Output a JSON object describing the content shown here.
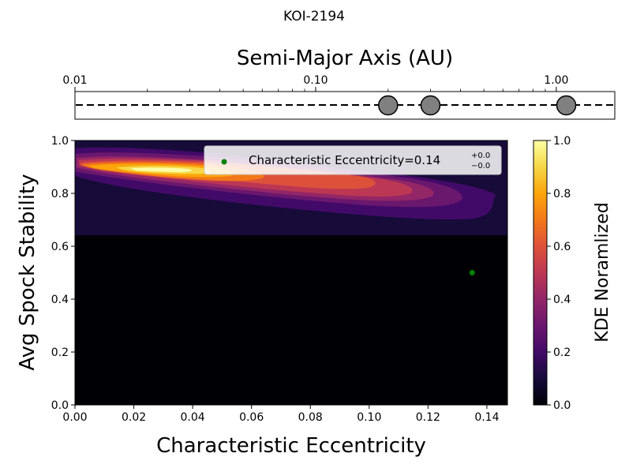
{
  "chart_data": [
    {
      "type": "scatter",
      "title": "KOI-2194",
      "xlabel": "Semi-Major Axis (AU)",
      "xscale": "log",
      "xlim": [
        0.01,
        1.75
      ],
      "tick_labels": [
        "0.01",
        "0.10",
        "1.00"
      ],
      "tick_values": [
        0.01,
        0.1,
        1.0
      ],
      "planets_au": [
        0.2,
        0.3,
        1.1
      ],
      "colors": {
        "planet": "#808080",
        "line": "#000000"
      }
    },
    {
      "type": "heatmap",
      "xlabel": "Characteristic Eccentricity",
      "ylabel": "Avg Spock Stability",
      "xlim": [
        0.0,
        0.147
      ],
      "ylim": [
        0.0,
        1.0
      ],
      "x_ticks": [
        "0.00",
        "0.02",
        "0.04",
        "0.06",
        "0.08",
        "0.10",
        "0.12",
        "0.14"
      ],
      "y_ticks": [
        "0.0",
        "0.2",
        "0.4",
        "0.6",
        "0.8",
        "1.0"
      ],
      "kde_region_y_min": 0.64,
      "kde_peak": {
        "x": 0.025,
        "y": 0.885
      },
      "marker": {
        "x": 0.135,
        "y": 0.5,
        "color": "#008000"
      },
      "legend": {
        "label": "Characteristic Eccentricity=0.14",
        "sup": "+0.0",
        "sub": "−0.0",
        "placement": "top-right"
      },
      "colorbar": {
        "label": "KDE Noramlized",
        "range": [
          0.0,
          1.0
        ],
        "ticks": [
          "0.0",
          "0.2",
          "0.4",
          "0.6",
          "0.8",
          "1.0"
        ],
        "colormap": "inferno"
      }
    }
  ]
}
